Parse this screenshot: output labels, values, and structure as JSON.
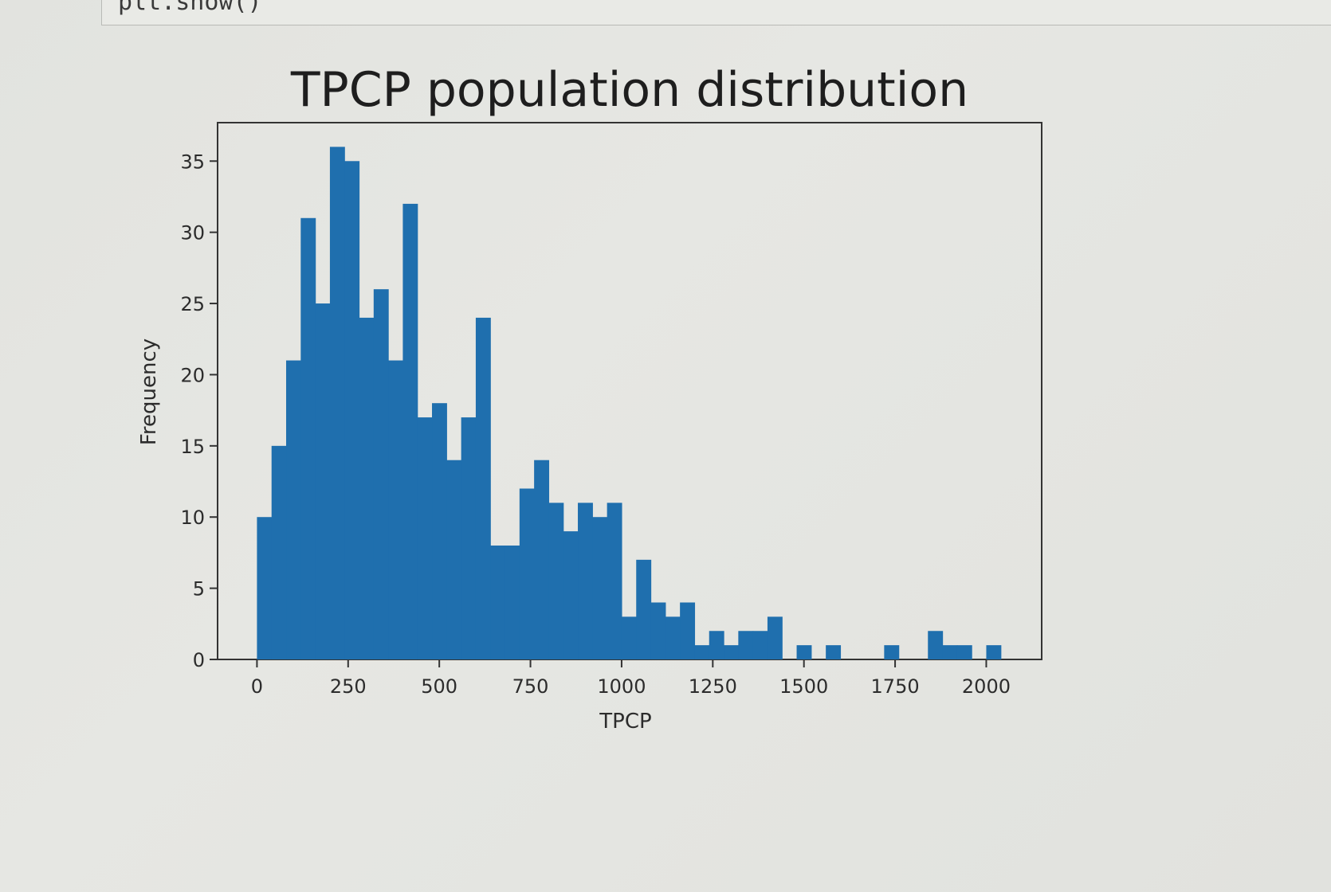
{
  "code_cell": {
    "visible_code": "plt.show()"
  },
  "colors": {
    "bar": "#1f6fae",
    "axes": "#333333",
    "text": "#2c2c2c"
  },
  "chart_data": {
    "type": "bar",
    "title": "TPCP population distribution",
    "xlabel": "TPCP",
    "ylabel": "Frequency",
    "bin_width": 40,
    "bin_start": 0,
    "values": [
      10,
      15,
      21,
      31,
      25,
      36,
      35,
      24,
      26,
      21,
      32,
      17,
      18,
      14,
      17,
      24,
      8,
      8,
      12,
      14,
      11,
      9,
      11,
      10,
      11,
      3,
      7,
      4,
      3,
      4,
      1,
      2,
      1,
      2,
      2,
      3,
      0,
      1,
      0,
      1,
      0,
      0,
      0,
      1,
      0,
      0,
      2,
      1,
      1,
      0,
      1
    ],
    "xlim": [
      -108,
      2152
    ],
    "ylim": [
      0,
      37.7
    ],
    "xticks": [
      0,
      250,
      500,
      750,
      1000,
      1250,
      1500,
      1750,
      2000
    ],
    "xtick_labels": [
      "0",
      "250",
      "500",
      "750",
      "1000",
      "1250",
      "1500",
      "1750",
      "2000"
    ],
    "yticks": [
      0,
      5,
      10,
      15,
      20,
      25,
      30,
      35
    ],
    "ytick_labels": [
      "0",
      "5",
      "10",
      "15",
      "20",
      "25",
      "30",
      "35"
    ],
    "grid": false,
    "legend": "none"
  }
}
